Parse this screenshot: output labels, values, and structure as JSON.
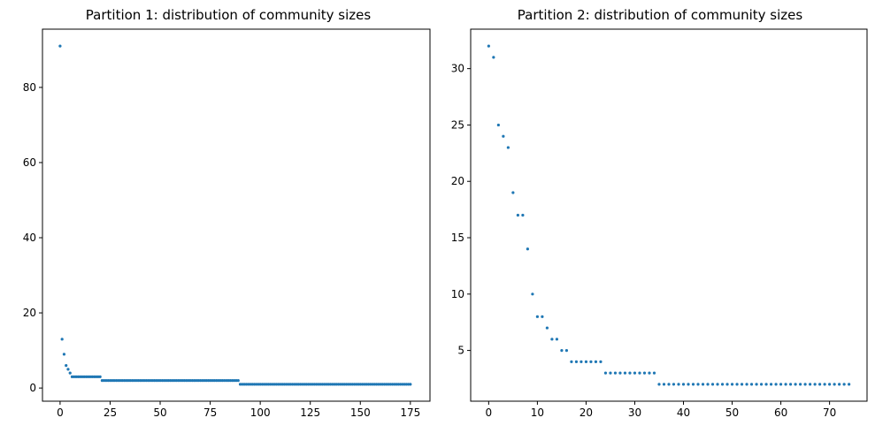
{
  "marker_color": "#1f77b4",
  "chart_data": [
    {
      "type": "scatter",
      "title": "Partition 1: distribution of community sizes",
      "xlabel": "",
      "ylabel": "",
      "xlim": [
        -8.8,
        184.8
      ],
      "ylim": [
        -3.5,
        95.5
      ],
      "xticks": [
        0,
        25,
        50,
        75,
        100,
        125,
        150,
        175
      ],
      "yticks": [
        0,
        20,
        40,
        60,
        80
      ],
      "grid": false,
      "runs": [
        {
          "x_start": 0,
          "values": [
            91,
            13,
            9,
            6,
            5,
            4
          ]
        },
        {
          "x_start": 6,
          "x_end": 20,
          "value": 3
        },
        {
          "x_start": 21,
          "x_end": 89,
          "value": 2
        },
        {
          "x_start": 90,
          "x_end": 175,
          "value": 1
        }
      ]
    },
    {
      "type": "scatter",
      "title": "Partition 2: distribution of community sizes",
      "xlabel": "",
      "ylabel": "",
      "xlim": [
        -3.7,
        77.7
      ],
      "ylim": [
        0.5,
        33.5
      ],
      "xticks": [
        0,
        10,
        20,
        30,
        40,
        50,
        60,
        70
      ],
      "yticks": [
        5,
        10,
        15,
        20,
        25,
        30
      ],
      "grid": false,
      "runs": [
        {
          "x_start": 0,
          "values": [
            32,
            31,
            25,
            24,
            23,
            19,
            17,
            17,
            14,
            10,
            8,
            8,
            7,
            6,
            6,
            5,
            5
          ]
        },
        {
          "x_start": 17,
          "x_end": 23,
          "value": 4
        },
        {
          "x_start": 24,
          "x_end": 34,
          "value": 3
        },
        {
          "x_start": 35,
          "x_end": 74,
          "value": 2
        }
      ]
    }
  ]
}
